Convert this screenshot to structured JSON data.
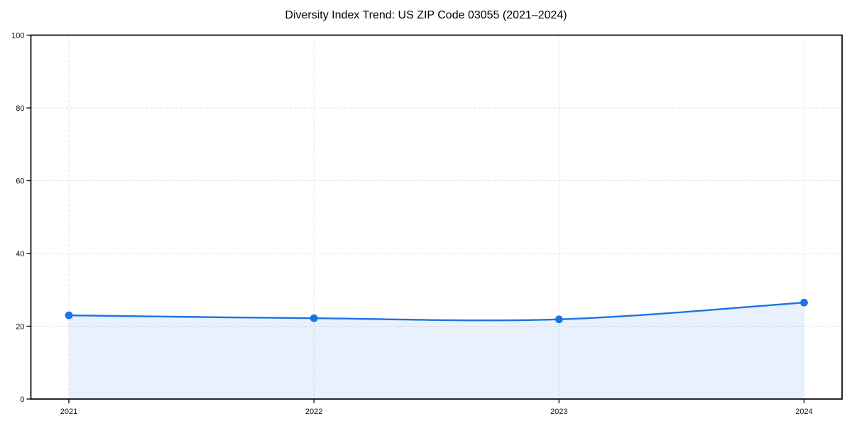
{
  "page": {
    "background": "#ffffff"
  },
  "chart_data": {
    "type": "line",
    "title": "Diversity Index Trend: US ZIP Code 03055 (2021–2024)",
    "categories": [
      "2021",
      "2022",
      "2023",
      "2024"
    ],
    "series": [
      {
        "name": "Diversity Index",
        "values": [
          23.0,
          22.2,
          21.9,
          26.5
        ]
      }
    ],
    "xlabel": "",
    "ylabel": "",
    "ylim": [
      0,
      100
    ],
    "yticks": [
      0,
      20,
      40,
      60,
      80,
      100
    ],
    "grid": "dashed-both",
    "legend": "none",
    "colors": {
      "line": "#1a73e8",
      "marker": "#1a73e8",
      "area_fill": "rgba(26,115,232,0.10)",
      "grid": "#e2e2e2",
      "spine": "#111111",
      "tick_label": "#111111",
      "title": "#000000"
    }
  }
}
